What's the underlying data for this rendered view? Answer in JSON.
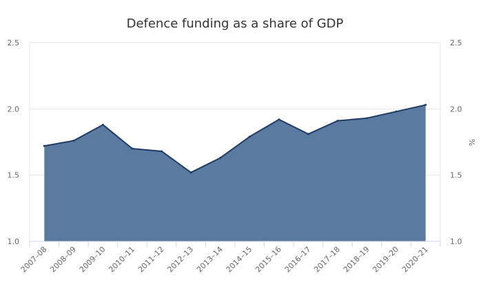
{
  "chart_data": {
    "type": "area",
    "title": "Defence funding as a share of GDP",
    "xlabel": "",
    "ylabel": "%",
    "ylabel_left": "%",
    "ylim": [
      1.0,
      2.5
    ],
    "yticks": [
      "1.0",
      "1.5",
      "2.0",
      "2.5"
    ],
    "grid": true,
    "categories": [
      "2007–08",
      "2008–09",
      "2009–10",
      "2010–11",
      "2011–12",
      "2012–13",
      "2013–14",
      "2014–15",
      "2015–16",
      "2016–17",
      "2017–18",
      "2018–19",
      "2019–20",
      "2020–21"
    ],
    "series": [
      {
        "name": "Defence funding as a share of GDP",
        "values": [
          1.72,
          1.76,
          1.88,
          1.7,
          1.68,
          1.52,
          1.63,
          1.79,
          1.92,
          1.81,
          1.91,
          1.93,
          1.98,
          2.03
        ]
      }
    ],
    "colors": {
      "area_fill": "#5b7aa0",
      "line": "#1f3b63",
      "grid": "#e6e6e6",
      "axis": "#ccd6eb",
      "text": "#666666",
      "title": "#333333"
    }
  }
}
